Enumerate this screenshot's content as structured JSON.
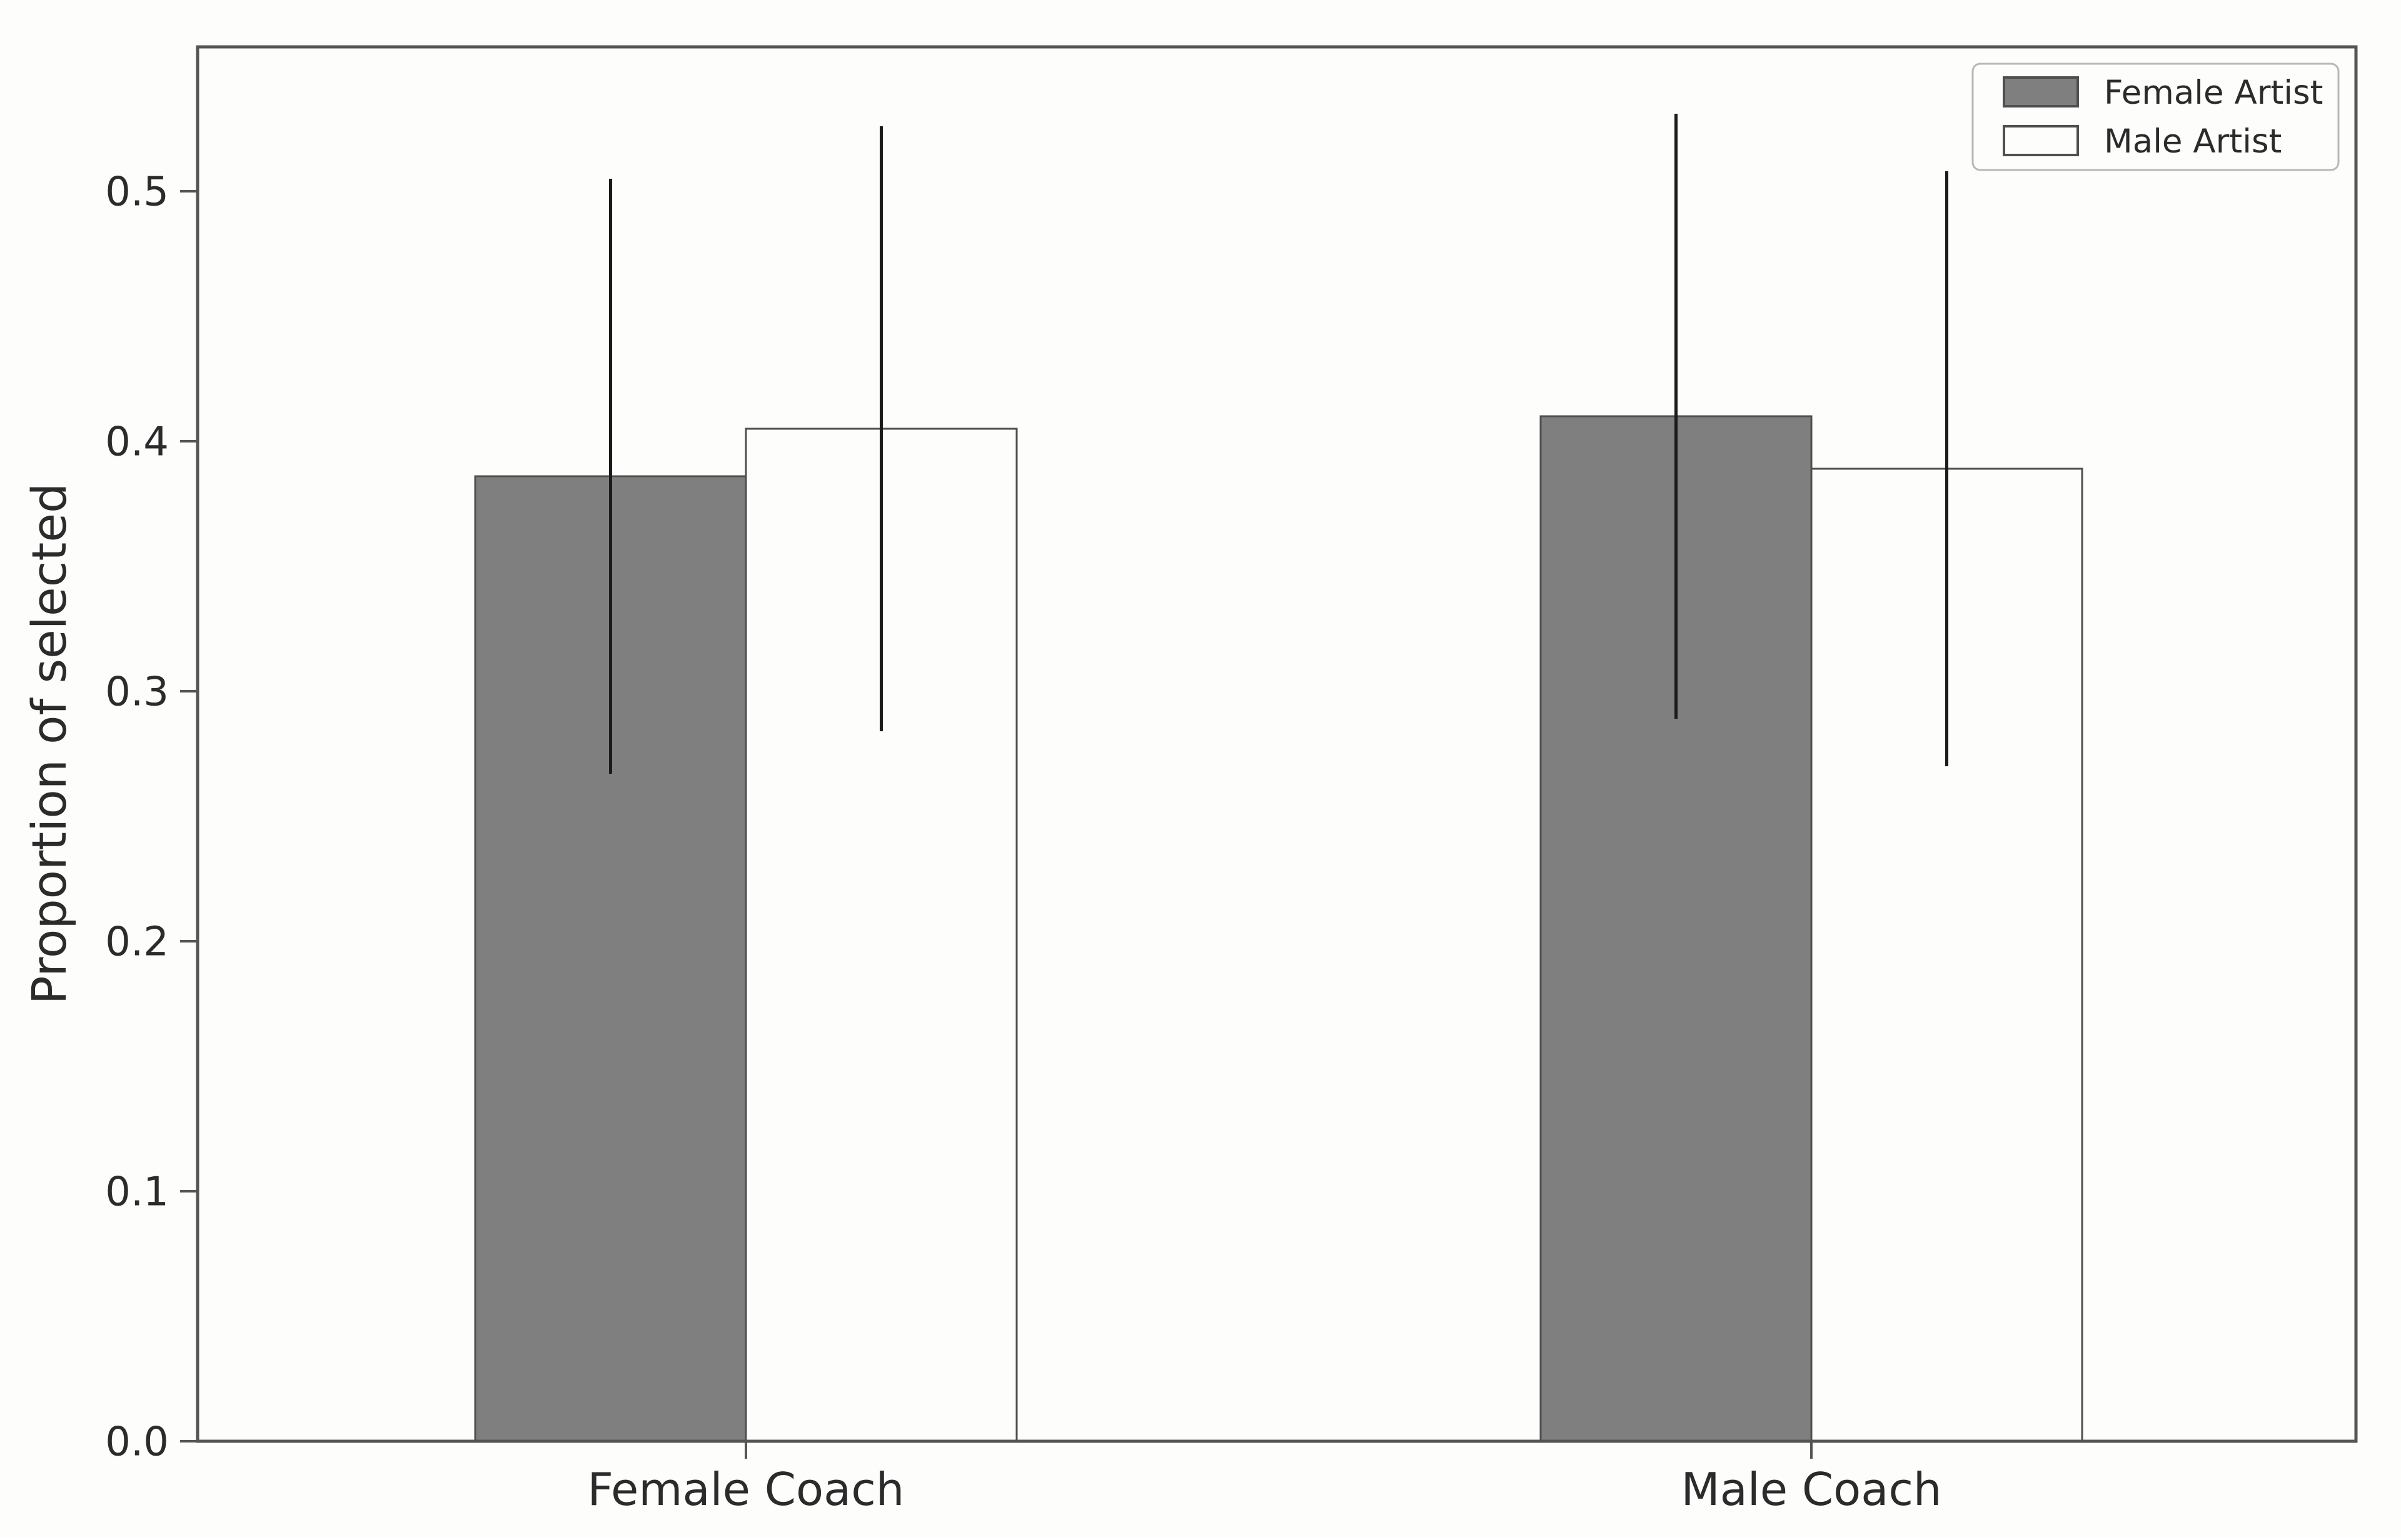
{
  "chart_data": {
    "type": "bar",
    "ylabel": "Proportion of selected",
    "xlabel": "",
    "categories": [
      "Female Coach",
      "Male Coach"
    ],
    "series": [
      {
        "name": "Female Artist",
        "fill": "#7f7f7f",
        "values": [
          0.386,
          0.41
        ],
        "errors": [
          0.119,
          0.121
        ]
      },
      {
        "name": "Male Artist",
        "fill": "#fdfdfc",
        "values": [
          0.405,
          0.389
        ],
        "errors": [
          0.121,
          0.119
        ]
      }
    ],
    "y_ticks": [
      0.0,
      0.1,
      0.2,
      0.3,
      0.4,
      0.5
    ],
    "ylim": [
      0.0,
      0.558
    ],
    "grid": false,
    "legend_position": "upper right",
    "error_bars": "vertical, no caps",
    "colors": {
      "bar_gray": "#7f7f7f",
      "bar_white": "#fdfdfc",
      "edge": "#4f4f4f",
      "error": "#1b1b1b",
      "spine": "#555555",
      "text": "#2b2b2b",
      "background": "#fdfdfc",
      "legend_border": "#b8b8b8"
    }
  }
}
